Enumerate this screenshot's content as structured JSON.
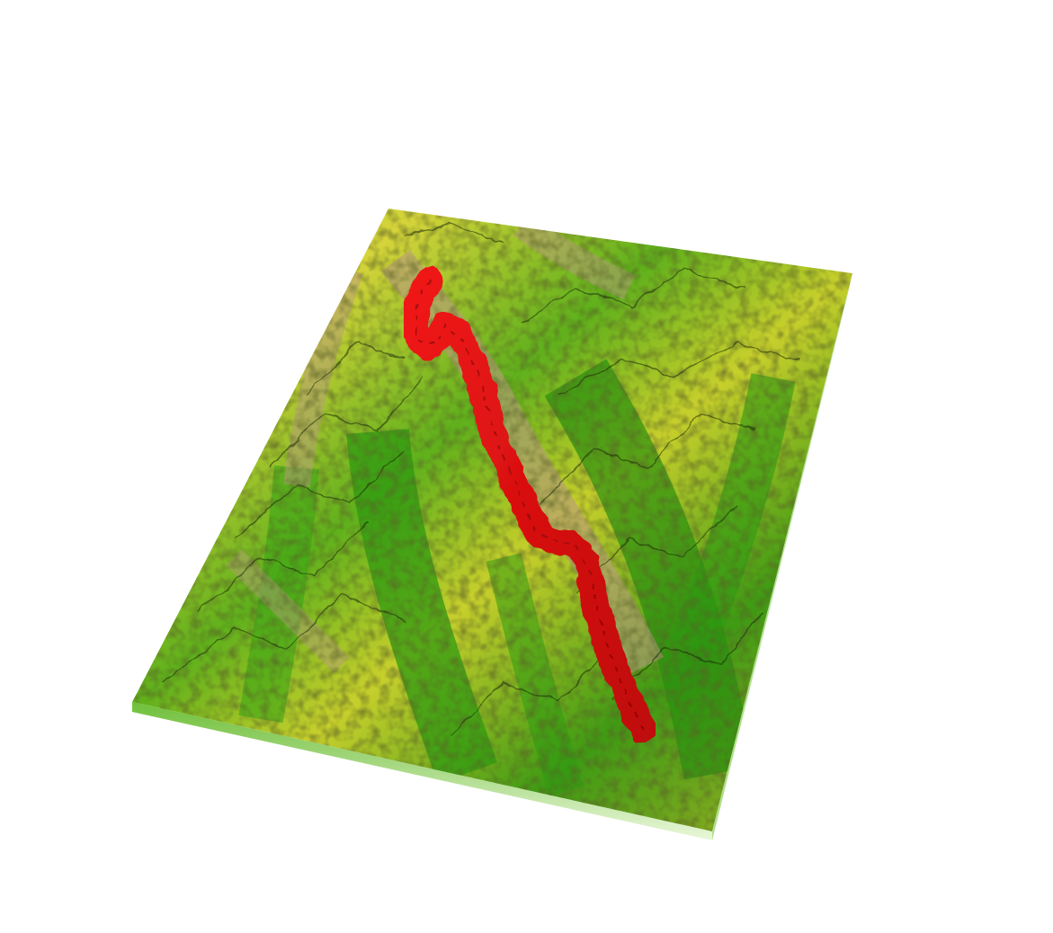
{
  "scene": {
    "type": "3d-terrain-relief",
    "background": "#ffffff",
    "colors": {
      "lowland": "#1f8a10",
      "low": "#4fb21a",
      "mid": "#c9d21e",
      "high": "#e8e23a",
      "peak": "#b89a7e",
      "ridge_shadow": "#1a2a08",
      "base_edge": "#9fe06a",
      "route": "#e01010",
      "route_dark": "#8a0606"
    },
    "route": {
      "color_name": "red",
      "icon": "route-path"
    }
  }
}
